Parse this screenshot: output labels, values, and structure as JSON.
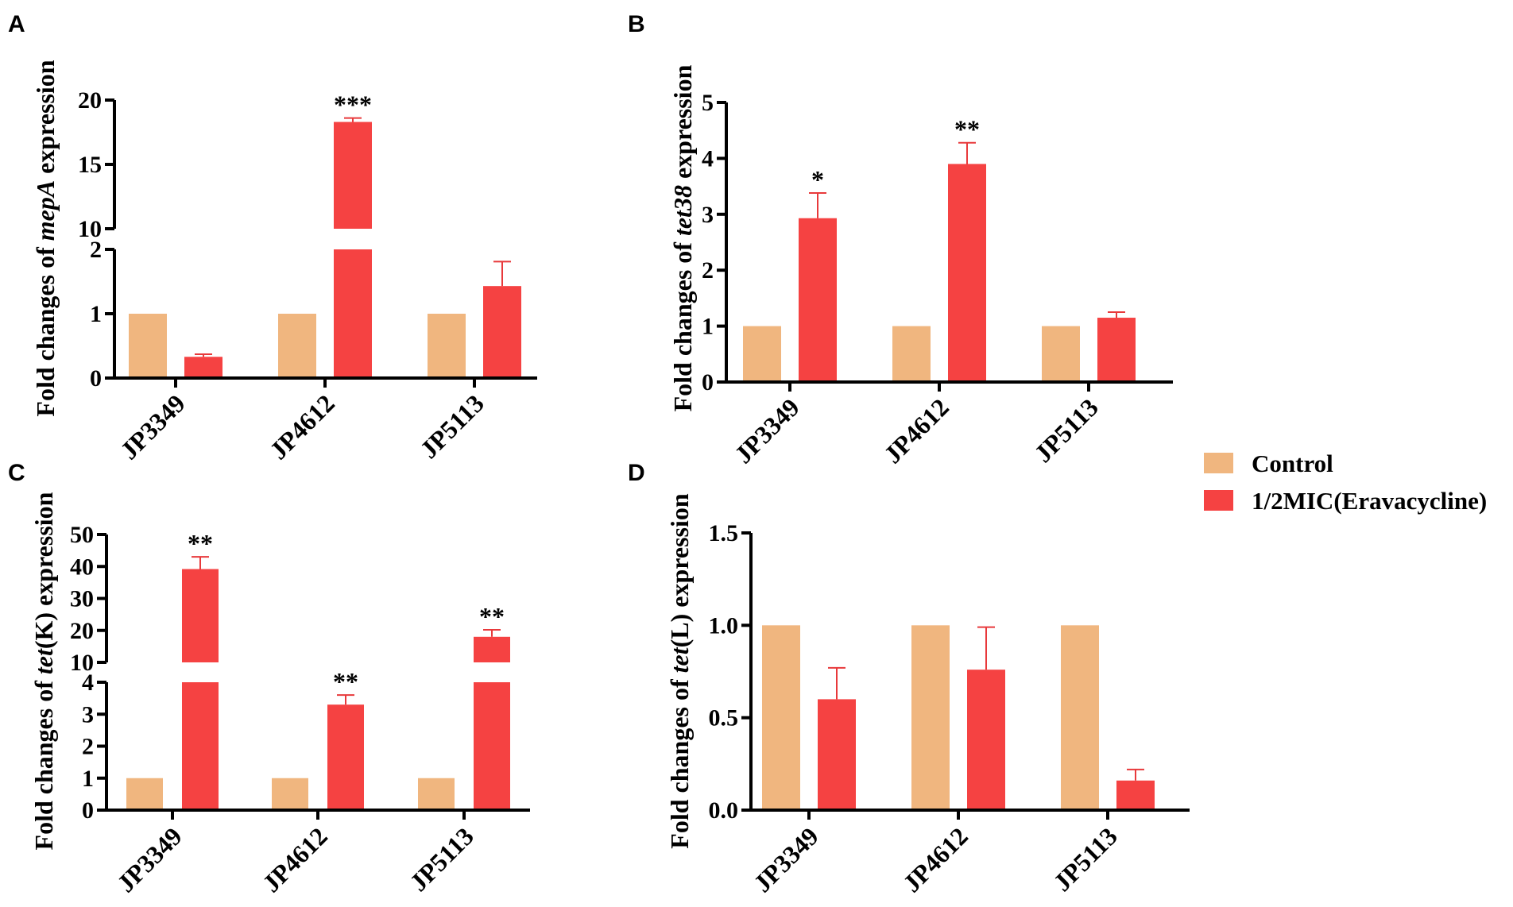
{
  "colors": {
    "control": "#f0b67f",
    "treated": "#f54242",
    "error": "#e8393b"
  },
  "legend": {
    "position": "right-middle",
    "items": [
      {
        "label": "Control",
        "color": "#f0b67f"
      },
      {
        "label": "1/2MIC(Eravacycline)",
        "color": "#f54242"
      }
    ]
  },
  "chart_data": [
    {
      "panel": "A",
      "type": "bar",
      "categories": [
        "JP3349",
        "JP4612",
        "JP5113"
      ],
      "series": [
        {
          "name": "Control",
          "values": [
            1,
            1,
            1
          ],
          "errors": [
            0,
            0,
            0
          ]
        },
        {
          "name": "1/2MIC(Eravacycline)",
          "values": [
            0.33,
            18.3,
            1.43
          ],
          "errors": [
            0.04,
            0.3,
            0.38
          ]
        }
      ],
      "ylabel_prefix": "Fold changes of ",
      "ylabel_italic": "mepA",
      "ylabel_suffix": " expression",
      "broken_axis": {
        "lower": [
          0,
          2
        ],
        "upper": [
          10,
          20
        ]
      },
      "yticks_lower": [
        "0",
        "1",
        "2"
      ],
      "yticks_upper": [
        "10",
        "15",
        "20"
      ],
      "significance": [
        "",
        "***",
        ""
      ]
    },
    {
      "panel": "B",
      "type": "bar",
      "categories": [
        "JP3349",
        "JP4612",
        "JP5113"
      ],
      "series": [
        {
          "name": "Control",
          "values": [
            1,
            1,
            1
          ],
          "errors": [
            0,
            0,
            0
          ]
        },
        {
          "name": "1/2MIC(Eravacycline)",
          "values": [
            2.93,
            3.9,
            1.15
          ],
          "errors": [
            0.45,
            0.38,
            0.1
          ]
        }
      ],
      "ylabel_prefix": "Fold changes of ",
      "ylabel_italic": "tet38",
      "ylabel_suffix": " expression",
      "ylim": [
        0,
        5
      ],
      "yticks": [
        "0",
        "1",
        "2",
        "3",
        "4",
        "5"
      ],
      "significance": [
        "*",
        "**",
        ""
      ]
    },
    {
      "panel": "C",
      "type": "bar",
      "categories": [
        "JP3349",
        "JP4612",
        "JP5113"
      ],
      "series": [
        {
          "name": "Control",
          "values": [
            1,
            1,
            1
          ],
          "errors": [
            0,
            0,
            0
          ]
        },
        {
          "name": "1/2MIC(Eravacycline)",
          "values": [
            39.2,
            3.3,
            18
          ],
          "errors": [
            3.8,
            0.3,
            2.2
          ]
        }
      ],
      "ylabel_prefix": "Fold changes of ",
      "ylabel_italic": "tet",
      "ylabel_suffix": "(K) expression",
      "broken_axis": {
        "lower": [
          0,
          4
        ],
        "upper": [
          10,
          50
        ]
      },
      "yticks_lower": [
        "0",
        "1",
        "2",
        "3",
        "4"
      ],
      "yticks_upper": [
        "10",
        "20",
        "30",
        "40",
        "50"
      ],
      "significance": [
        "**",
        "**",
        "**"
      ]
    },
    {
      "panel": "D",
      "type": "bar",
      "categories": [
        "JP3349",
        "JP4612",
        "JP5113"
      ],
      "series": [
        {
          "name": "Control",
          "values": [
            1,
            1,
            1
          ],
          "errors": [
            0,
            0,
            0
          ]
        },
        {
          "name": "1/2MIC(Eravacycline)",
          "values": [
            0.6,
            0.76,
            0.16
          ],
          "errors": [
            0.17,
            0.23,
            0.06
          ]
        }
      ],
      "ylabel_prefix": "Fold changes of ",
      "ylabel_italic": "tet",
      "ylabel_suffix": "(L) expression",
      "ylim": [
        0,
        1.5
      ],
      "yticks": [
        "0.0",
        "0.5",
        "1.0",
        "1.5"
      ],
      "significance": [
        "",
        "",
        ""
      ]
    }
  ]
}
